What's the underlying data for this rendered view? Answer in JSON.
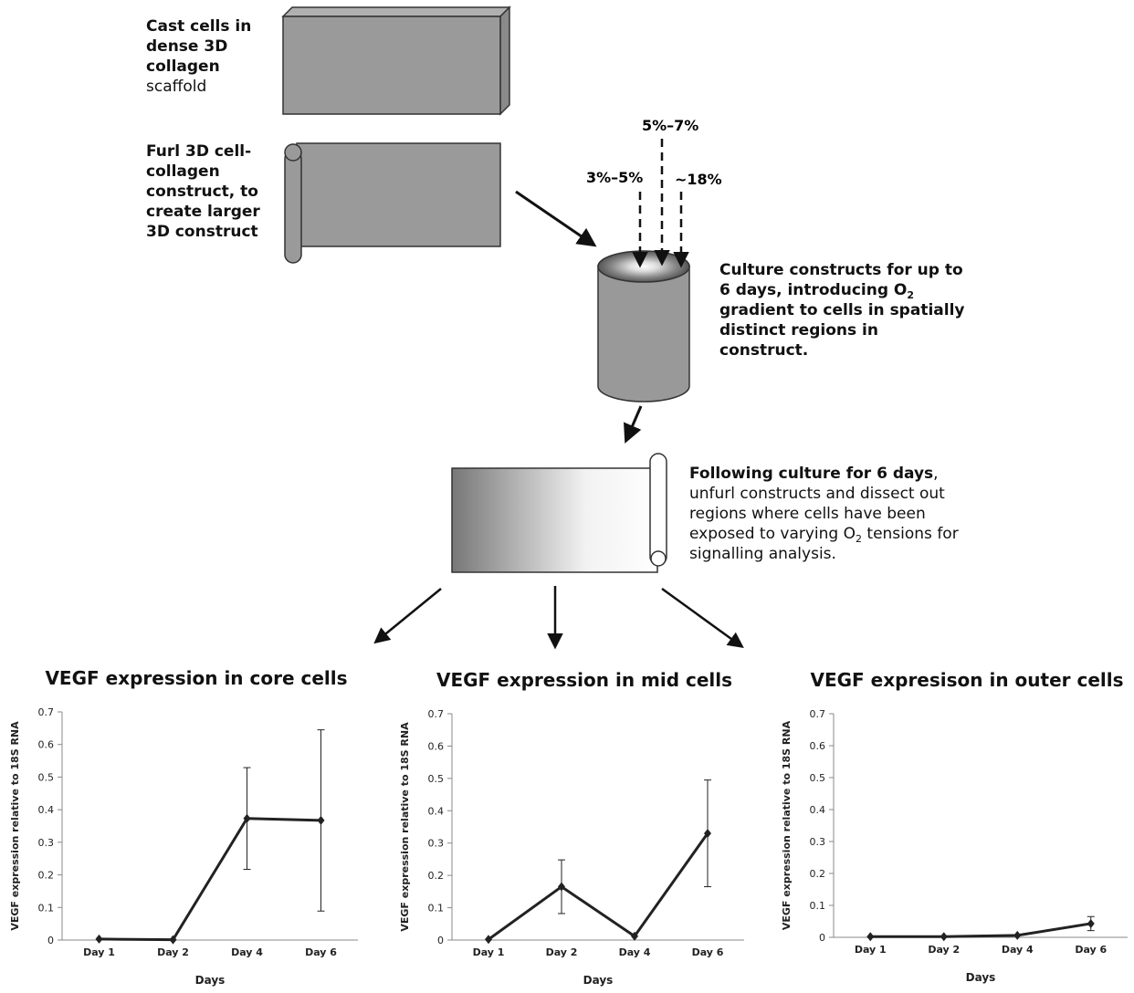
{
  "diagram": {
    "step1": {
      "bold": "Cast cells in dense 3D collagen",
      "rest": "scaffold"
    },
    "step2": "Furl 3D cell-collagen construct, to create larger 3D construct",
    "oxygen_labels": [
      "3%–5%",
      "5%–7%",
      "~18%"
    ],
    "step3": {
      "before": "Culture constructs for up to 6 days, introducing O",
      "sub": "2",
      "after": "gradient to cells in spatially distinct regions in construct."
    },
    "step4": {
      "bold": "Following culture for 6 days",
      "text1": ", unfurl constructs and dissect out regions where cells have been exposed to varying O",
      "sub": "2",
      "text2": " tensions for signalling analysis."
    }
  },
  "chart_data": [
    {
      "type": "line",
      "title": "VEGF expression in core cells",
      "x_label": "Days",
      "y_label": "VEGF expression relative to 18S RNA",
      "categories": [
        "Day 1",
        "Day 2",
        "Day 4",
        "Day 6"
      ],
      "values": [
        0.003,
        0.001,
        0.373,
        0.367
      ],
      "errors": [
        0,
        0,
        0.156,
        0.278
      ],
      "color": "#222222",
      "ylim": [
        0,
        0.7
      ],
      "yticks": [
        0,
        0.1,
        0.2,
        0.3,
        0.4,
        0.5,
        0.6,
        0.7
      ]
    },
    {
      "type": "line",
      "title": "VEGF expression in mid cells",
      "x_label": "Days",
      "y_label": "VEGF expression relative to 18S RNA",
      "categories": [
        "Day 1",
        "Day 2",
        "Day 4",
        "Day 6"
      ],
      "values": [
        0.002,
        0.165,
        0.012,
        0.33
      ],
      "errors": [
        0,
        0.083,
        0,
        0.165
      ],
      "color": "#222222",
      "ylim": [
        0,
        0.7
      ],
      "yticks": [
        0,
        0.1,
        0.2,
        0.3,
        0.4,
        0.5,
        0.6,
        0.7
      ]
    },
    {
      "type": "line",
      "title": "VEGF expresison in outer cells",
      "x_label": "Days",
      "y_label": "VEGF expression relative to 18S RNA",
      "categories": [
        "Day 1",
        "Day 2",
        "Day 4",
        "Day 6"
      ],
      "values": [
        0.002,
        0.002,
        0.006,
        0.043
      ],
      "errors": [
        0,
        0,
        0,
        0.022
      ],
      "color": "#222222",
      "ylim": [
        0,
        0.7
      ],
      "yticks": [
        0,
        0.1,
        0.2,
        0.3,
        0.4,
        0.5,
        0.6,
        0.7
      ]
    }
  ]
}
